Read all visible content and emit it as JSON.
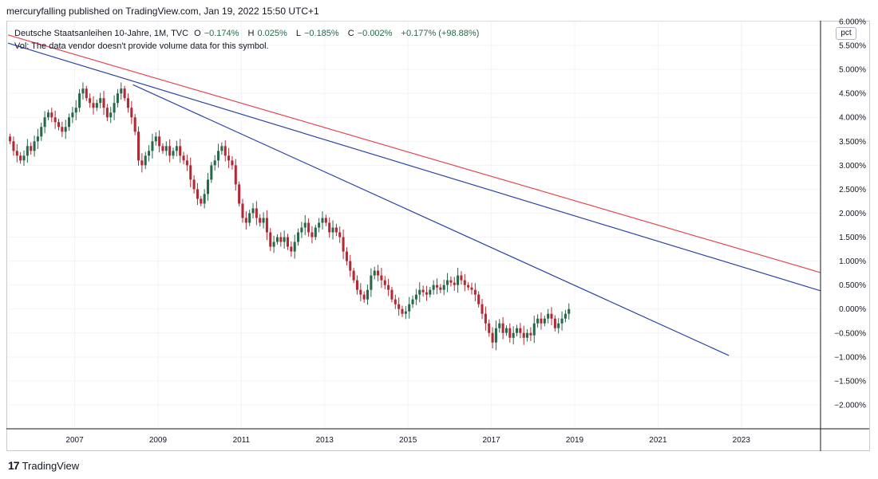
{
  "header": {
    "published_line": "mercuryfalling published on TradingView.com, Jan 19, 2022 15:50 UTC+1"
  },
  "legend": {
    "symbol": "Deutsche Staatsanleihen 10-Jahre, 1M, TVC",
    "open_label": "O",
    "open_value": "−0.174%",
    "high_label": "H",
    "high_value": "0.025%",
    "low_label": "L",
    "low_value": "−0.185%",
    "close_label": "C",
    "close_value": "−0.002%",
    "change": "+0.177% (+98.88%)",
    "volume_note": "Vol: The data vendor doesn't provide volume data for this symbol."
  },
  "price_scale": {
    "unit_badge": "pct"
  },
  "footer": {
    "logo_glyph": "17",
    "brand": "TradingView"
  },
  "colors": {
    "up": "#26694a",
    "down": "#b22833",
    "trend_blue": "#2a44a8",
    "trend_red": "#e8454f",
    "grid": "#f0f3fa"
  },
  "chart_data": {
    "type": "candlestick",
    "title": "Deutsche Staatsanleihen 10-Jahre, 1M, TVC",
    "x_range": [
      2005.4,
      2024.9
    ],
    "y_range": [
      -2.5,
      6.0
    ],
    "y_ticks": [
      6.0,
      5.5,
      5.0,
      4.5,
      4.0,
      3.5,
      3.0,
      2.5,
      2.0,
      1.5,
      1.0,
      0.5,
      0.0,
      -0.5,
      -1.0,
      -1.5,
      -2.0
    ],
    "y_tick_labels": [
      "6.000%",
      "5.500%",
      "5.000%",
      "4.500%",
      "4.000%",
      "3.500%",
      "3.000%",
      "2.500%",
      "2.000%",
      "1.500%",
      "1.000%",
      "0.500%",
      "0.000%",
      "−0.500%",
      "−1.000%",
      "−1.500%",
      "−2.000%"
    ],
    "x_ticks": [
      2007,
      2009,
      2011,
      2013,
      2015,
      2017,
      2019,
      2021,
      2023
    ],
    "x_tick_labels": [
      "2007",
      "2009",
      "2011",
      "2013",
      "2015",
      "2017",
      "2019",
      "2021",
      "2023"
    ],
    "start_year": 2005.45,
    "interval_years": 0.0833,
    "closes": [
      3.5,
      3.3,
      3.2,
      3.1,
      3.2,
      3.4,
      3.3,
      3.5,
      3.6,
      3.8,
      4.0,
      4.1,
      4.0,
      3.9,
      3.8,
      3.7,
      3.8,
      4.0,
      4.1,
      4.2,
      4.5,
      4.6,
      4.4,
      4.3,
      4.2,
      4.3,
      4.4,
      4.2,
      4.0,
      4.1,
      4.3,
      4.5,
      4.6,
      4.4,
      4.2,
      4.0,
      3.7,
      3.1,
      3.0,
      3.2,
      3.3,
      3.5,
      3.6,
      3.4,
      3.3,
      3.4,
      3.2,
      3.3,
      3.4,
      3.2,
      3.1,
      3.0,
      2.7,
      2.5,
      2.3,
      2.2,
      2.4,
      2.7,
      3.0,
      3.1,
      3.3,
      3.4,
      3.2,
      3.1,
      3.0,
      2.6,
      2.2,
      1.9,
      1.8,
      2.0,
      2.1,
      1.9,
      1.8,
      1.9,
      1.6,
      1.3,
      1.4,
      1.5,
      1.4,
      1.5,
      1.3,
      1.2,
      1.4,
      1.6,
      1.7,
      1.8,
      1.6,
      1.5,
      1.7,
      1.8,
      1.9,
      1.8,
      1.6,
      1.7,
      1.6,
      1.5,
      1.2,
      1.0,
      0.8,
      0.6,
      0.4,
      0.3,
      0.2,
      0.4,
      0.7,
      0.8,
      0.7,
      0.6,
      0.5,
      0.4,
      0.2,
      0.1,
      0.0,
      -0.1,
      -0.05,
      0.1,
      0.2,
      0.3,
      0.4,
      0.35,
      0.3,
      0.4,
      0.5,
      0.45,
      0.4,
      0.5,
      0.6,
      0.55,
      0.5,
      0.7,
      0.6,
      0.5,
      0.45,
      0.4,
      0.3,
      0.1,
      -0.1,
      -0.3,
      -0.5,
      -0.7,
      -0.4,
      -0.3,
      -0.5,
      -0.4,
      -0.6,
      -0.5,
      -0.4,
      -0.5,
      -0.6,
      -0.5,
      -0.55,
      -0.3,
      -0.2,
      -0.3,
      -0.2,
      -0.1,
      -0.2,
      -0.4,
      -0.3,
      -0.2,
      -0.1,
      -0.002
    ],
    "lines": [
      {
        "name": "upper red trendline",
        "color": "red",
        "from": [
          2005.4,
          5.72
        ],
        "to": [
          2024.9,
          0.76
        ]
      },
      {
        "name": "upper blue trendline",
        "color": "blue",
        "from": [
          2005.4,
          5.55
        ],
        "to": [
          2024.9,
          0.38
        ]
      },
      {
        "name": "lower blue trendline",
        "color": "blue",
        "from": [
          2008.4,
          4.68
        ],
        "to": [
          2022.7,
          -0.97
        ]
      }
    ]
  }
}
